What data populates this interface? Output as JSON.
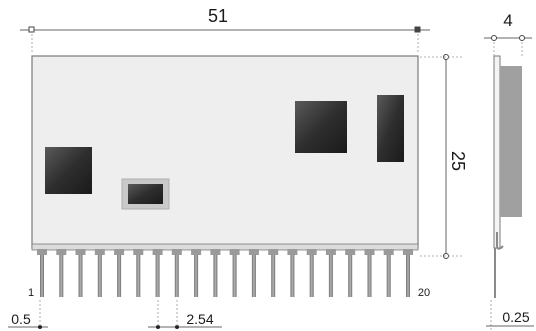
{
  "figure": {
    "dimensions": {
      "width": "51",
      "height": "25",
      "thickness": "4",
      "pin_pitch": "2.54",
      "edge_offset": "0.5",
      "pin_thickness": "0.25"
    },
    "pins": {
      "count": 20,
      "first_label": "1",
      "last_label": "20"
    },
    "colors": {
      "board": "#eeeeee",
      "board_edge": "#7a7a7a",
      "chip": "#2a2a2a",
      "pin": "#8a8a8a",
      "side_component": "#a0a0a0",
      "dimension_line": "#666666"
    }
  }
}
